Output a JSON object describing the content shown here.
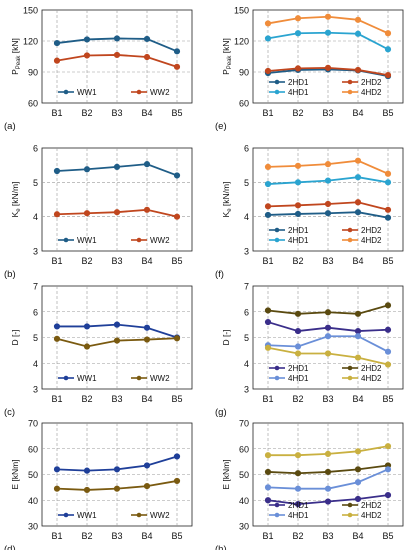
{
  "chart_data": [
    {
      "type": "line",
      "panel_label": "(a)",
      "categories": [
        "B1",
        "B2",
        "B3",
        "B4",
        "B5"
      ],
      "ylabel": "P_peak [kN]",
      "ylabel_main": "P",
      "ylabel_sub": "Peak",
      "ylabel_unit": " [kN]",
      "ylim": [
        60,
        150
      ],
      "yticks": [
        "60",
        "90",
        "120",
        "150"
      ],
      "grid": true,
      "legend": "bottom-center",
      "series": [
        {
          "name": "WW1",
          "color": "#1f5d87",
          "marker": "circle",
          "values": [
            118,
            121.5,
            122.5,
            122,
            110
          ]
        },
        {
          "name": "WW2",
          "color": "#c0461e",
          "marker": "circle",
          "values": [
            101,
            106,
            106.5,
            104.5,
            95
          ]
        }
      ]
    },
    {
      "type": "line",
      "panel_label": "(e)",
      "categories": [
        "B1",
        "B2",
        "B3",
        "B4",
        "B5"
      ],
      "ylabel": "P_peak [kN]",
      "ylabel_main": "P",
      "ylabel_sub": "Peak",
      "ylabel_unit": " [kN]",
      "ylim": [
        60,
        150
      ],
      "yticks": [
        "60",
        "90",
        "120",
        "150"
      ],
      "grid": true,
      "legend": "bottom-center",
      "series": [
        {
          "name": "2HD1",
          "color": "#1f5d87",
          "marker": "circle",
          "values": [
            89,
            92,
            92.5,
            91.5,
            86
          ]
        },
        {
          "name": "2HD2",
          "color": "#c0461e",
          "marker": "circle",
          "values": [
            91,
            93.5,
            94,
            92,
            87
          ]
        },
        {
          "name": "4HD1",
          "color": "#2aa4d0",
          "marker": "circle",
          "values": [
            122.5,
            127.5,
            128,
            127,
            112
          ]
        },
        {
          "name": "4HD2",
          "color": "#f08c3a",
          "marker": "circle",
          "values": [
            137,
            142,
            143.5,
            140.5,
            127.5
          ]
        }
      ]
    },
    {
      "type": "line",
      "panel_label": "(b)",
      "categories": [
        "B1",
        "B2",
        "B3",
        "B4",
        "B5"
      ],
      "ylabel": "K_e [kN/m]",
      "ylabel_main": "K",
      "ylabel_sub": "e",
      "ylabel_unit": " [kN/m]",
      "ylim": [
        3,
        6
      ],
      "yticks": [
        "3",
        "4",
        "5",
        "6"
      ],
      "grid": true,
      "legend": "bottom-center",
      "series": [
        {
          "name": "WW1",
          "color": "#1f5d87",
          "marker": "circle",
          "values": [
            5.33,
            5.38,
            5.45,
            5.53,
            5.2
          ]
        },
        {
          "name": "WW2",
          "color": "#c0461e",
          "marker": "circle",
          "values": [
            4.07,
            4.1,
            4.13,
            4.2,
            4.0
          ]
        }
      ]
    },
    {
      "type": "line",
      "panel_label": "(f)",
      "categories": [
        "B1",
        "B2",
        "B3",
        "B4",
        "B5"
      ],
      "ylabel": "K_e [kN/m]",
      "ylabel_main": "K",
      "ylabel_sub": "e",
      "ylabel_unit": " [kN/m]",
      "ylim": [
        3,
        6
      ],
      "yticks": [
        "3",
        "4",
        "5",
        "6"
      ],
      "grid": true,
      "legend": "bottom-center",
      "series": [
        {
          "name": "2HD1",
          "color": "#1f5d87",
          "marker": "circle",
          "values": [
            4.05,
            4.08,
            4.1,
            4.13,
            3.97
          ]
        },
        {
          "name": "2HD2",
          "color": "#c0461e",
          "marker": "circle",
          "values": [
            4.3,
            4.33,
            4.37,
            4.42,
            4.2
          ]
        },
        {
          "name": "4HD1",
          "color": "#2aa4d0",
          "marker": "circle",
          "values": [
            4.95,
            5.0,
            5.05,
            5.15,
            5.0
          ]
        },
        {
          "name": "4HD2",
          "color": "#f08c3a",
          "marker": "circle",
          "values": [
            5.45,
            5.48,
            5.53,
            5.63,
            5.25
          ]
        }
      ]
    },
    {
      "type": "line",
      "panel_label": "(c)",
      "categories": [
        "B1",
        "B2",
        "B3",
        "B4",
        "B5"
      ],
      "ylabel": "D [-]",
      "ylabel_main": "D",
      "ylabel_sub": "",
      "ylabel_unit": " [-]",
      "ylim": [
        3,
        7
      ],
      "yticks": [
        "3",
        "4",
        "5",
        "6",
        "7"
      ],
      "grid": true,
      "legend": "bottom-center",
      "series": [
        {
          "name": "WW1",
          "color": "#1f3f99",
          "marker": "circle",
          "values": [
            5.43,
            5.43,
            5.5,
            5.38,
            5.0
          ]
        },
        {
          "name": "WW2",
          "color": "#7a5a10",
          "marker": "circle",
          "values": [
            4.95,
            4.65,
            4.88,
            4.92,
            4.97
          ]
        }
      ]
    },
    {
      "type": "line",
      "panel_label": "(g)",
      "categories": [
        "B1",
        "B2",
        "B3",
        "B4",
        "B5"
      ],
      "ylabel": "D [-]",
      "ylabel_main": "D",
      "ylabel_sub": "",
      "ylabel_unit": " [-]",
      "ylim": [
        3,
        7
      ],
      "yticks": [
        "3",
        "4",
        "5",
        "6",
        "7"
      ],
      "grid": true,
      "legend": "bottom-center",
      "series": [
        {
          "name": "2HD1",
          "color": "#3a2e8a",
          "marker": "circle",
          "values": [
            5.6,
            5.25,
            5.38,
            5.25,
            5.3
          ]
        },
        {
          "name": "2HD2",
          "color": "#5a4a10",
          "marker": "circle",
          "values": [
            6.05,
            5.92,
            5.98,
            5.92,
            6.25
          ]
        },
        {
          "name": "4HD1",
          "color": "#6a8fd8",
          "marker": "circle",
          "values": [
            4.7,
            4.65,
            5.05,
            5.05,
            4.45
          ]
        },
        {
          "name": "4HD2",
          "color": "#c9b040",
          "marker": "circle",
          "values": [
            4.6,
            4.38,
            4.38,
            4.22,
            3.95
          ]
        }
      ]
    },
    {
      "type": "line",
      "panel_label": "(d)",
      "categories": [
        "B1",
        "B2",
        "B3",
        "B4",
        "B5"
      ],
      "ylabel": "E [kNm]",
      "ylabel_main": "E",
      "ylabel_sub": "",
      "ylabel_unit": " [kNm]",
      "ylim": [
        30,
        70
      ],
      "yticks": [
        "30",
        "40",
        "50",
        "60",
        "70"
      ],
      "grid": true,
      "legend": "bottom-center",
      "series": [
        {
          "name": "WW1",
          "color": "#1f3f99",
          "marker": "circle",
          "values": [
            52,
            51.5,
            52,
            53.5,
            57
          ]
        },
        {
          "name": "WW2",
          "color": "#7a5a10",
          "marker": "circle",
          "values": [
            44.5,
            44,
            44.5,
            45.5,
            47.5
          ]
        }
      ]
    },
    {
      "type": "line",
      "panel_label": "(h)",
      "categories": [
        "B1",
        "B2",
        "B3",
        "B4",
        "B5"
      ],
      "ylabel": "E [kNm]",
      "ylabel_main": "E",
      "ylabel_sub": "",
      "ylabel_unit": " [kNm]",
      "ylim": [
        30,
        70
      ],
      "yticks": [
        "30",
        "40",
        "50",
        "60",
        "70"
      ],
      "grid": true,
      "legend": "bottom-center",
      "series": [
        {
          "name": "2HD1",
          "color": "#3a2e8a",
          "marker": "circle",
          "values": [
            40,
            38.5,
            39.5,
            40.5,
            42
          ]
        },
        {
          "name": "2HD2",
          "color": "#5a4a10",
          "marker": "circle",
          "values": [
            51,
            50.5,
            51,
            52,
            53.5
          ]
        },
        {
          "name": "4HD1",
          "color": "#6a8fd8",
          "marker": "circle",
          "values": [
            45,
            44.5,
            44.5,
            47,
            52
          ]
        },
        {
          "name": "4HD2",
          "color": "#c9b040",
          "marker": "circle",
          "values": [
            57.5,
            57.5,
            58,
            59,
            61
          ]
        }
      ]
    }
  ]
}
